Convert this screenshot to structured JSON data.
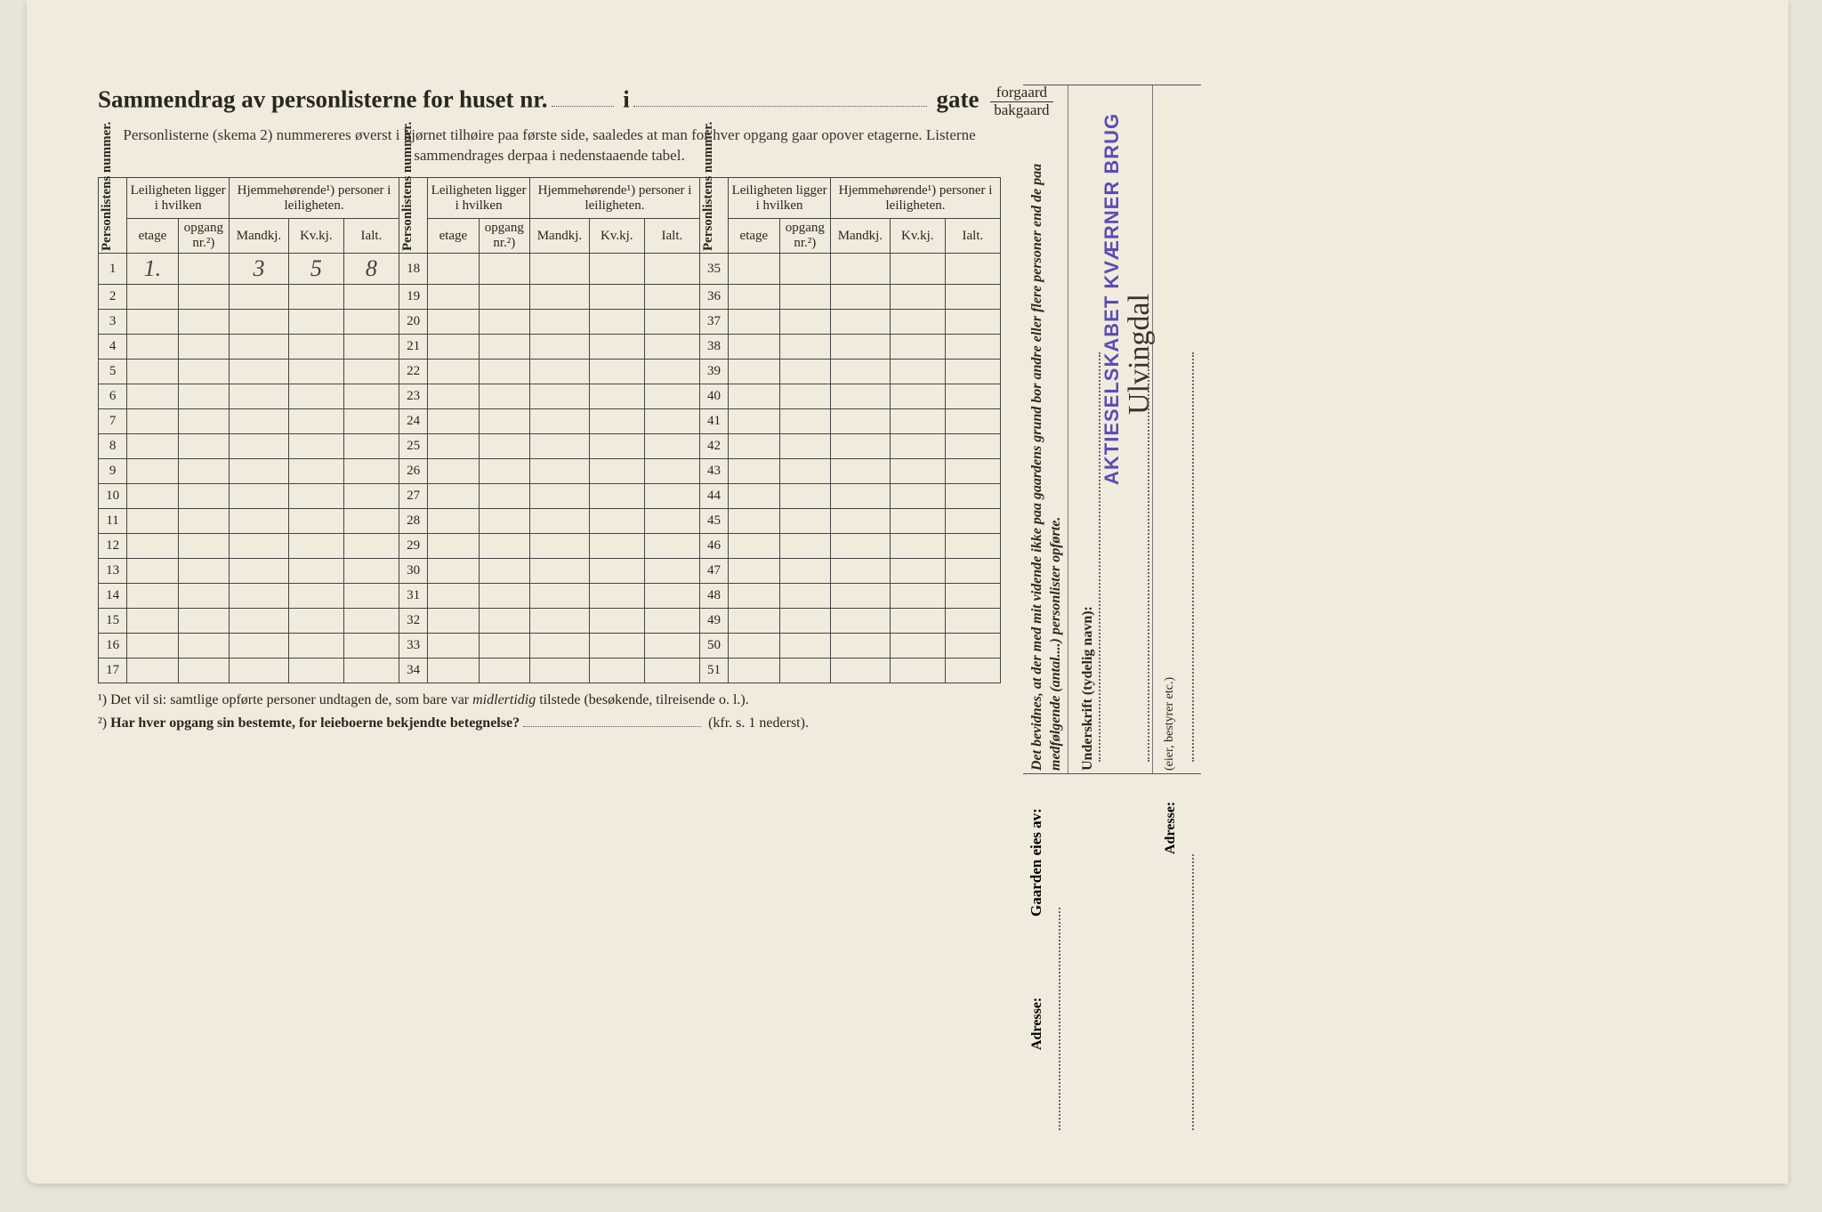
{
  "title": {
    "main": "Sammendrag av personlisterne for huset nr.",
    "i": "i",
    "gate": "gate",
    "fraction_top": "forgaard",
    "fraction_bot": "bakgaard"
  },
  "subtitle": "Personlisterne (skema 2) nummereres øverst i hjørnet tilhøire paa første side, saaledes at man for hver opgang gaar opover etagerne.  Listerne sammendrages derpaa i nedenstaaende tabel.",
  "headers": {
    "personlistens": "Personlistens nummer.",
    "leiligheten": "Leiligheten ligger i hvilken",
    "hjemmehorende": "Hjemmehørende¹) personer i leiligheten.",
    "etage": "etage",
    "opgang": "opgang nr.²)",
    "mandkj": "Mandkj.",
    "kvkj": "Kv.kj.",
    "ialt": "Ialt."
  },
  "handwritten": {
    "r1_etage": "1.",
    "r1_mandkj": "3",
    "r1_kvkj": "5",
    "r1_ialt": "8"
  },
  "rows_a": [
    1,
    2,
    3,
    4,
    5,
    6,
    7,
    8,
    9,
    10,
    11,
    12,
    13,
    14,
    15,
    16,
    17
  ],
  "rows_b": [
    18,
    19,
    20,
    21,
    22,
    23,
    24,
    25,
    26,
    27,
    28,
    29,
    30,
    31,
    32,
    33,
    34
  ],
  "rows_c": [
    35,
    36,
    37,
    38,
    39,
    40,
    41,
    42,
    43,
    44,
    45,
    46,
    47,
    48,
    49,
    50,
    51
  ],
  "footnotes": {
    "f1_pre": "¹)  Det vil si: samtlige opførte personer undtagen de, som bare var ",
    "f1_mid": "midlertidig",
    "f1_post": " tilstede (besøkende, tilreisende o. l.).",
    "f2_pre": "²)  ",
    "f2_bold": "Har hver opgang sin bestemte, for leieboerne bekjendte betegnelse?",
    "f2_post": " (kfr. s. 1 nederst)."
  },
  "side": {
    "attest": "Det bevidnes, at der med mit vidende ikke paa gaardens grund bor andre eller flere personer end de paa medfølgende (antal....) personlister opførte.",
    "underskrift": "Underskrift (tydelig navn):",
    "role": "(eier, bestyrer etc.)",
    "stamp": "AKTIESELSKABET KVÆRNER BRUG",
    "signature": "Ulvingdal",
    "gaarden": "Gaarden eies av:",
    "adresse": "Adresse:"
  },
  "colors": {
    "paper": "#f0ebdc",
    "text": "#2a2620",
    "border": "#444",
    "stamp": "#5a4db5",
    "handwriting": "#4a4038"
  },
  "col_widths": {
    "num": 28,
    "etage": 46,
    "opgang": 46,
    "mandkj": 58,
    "kvkj": 58,
    "ialt": 58
  }
}
